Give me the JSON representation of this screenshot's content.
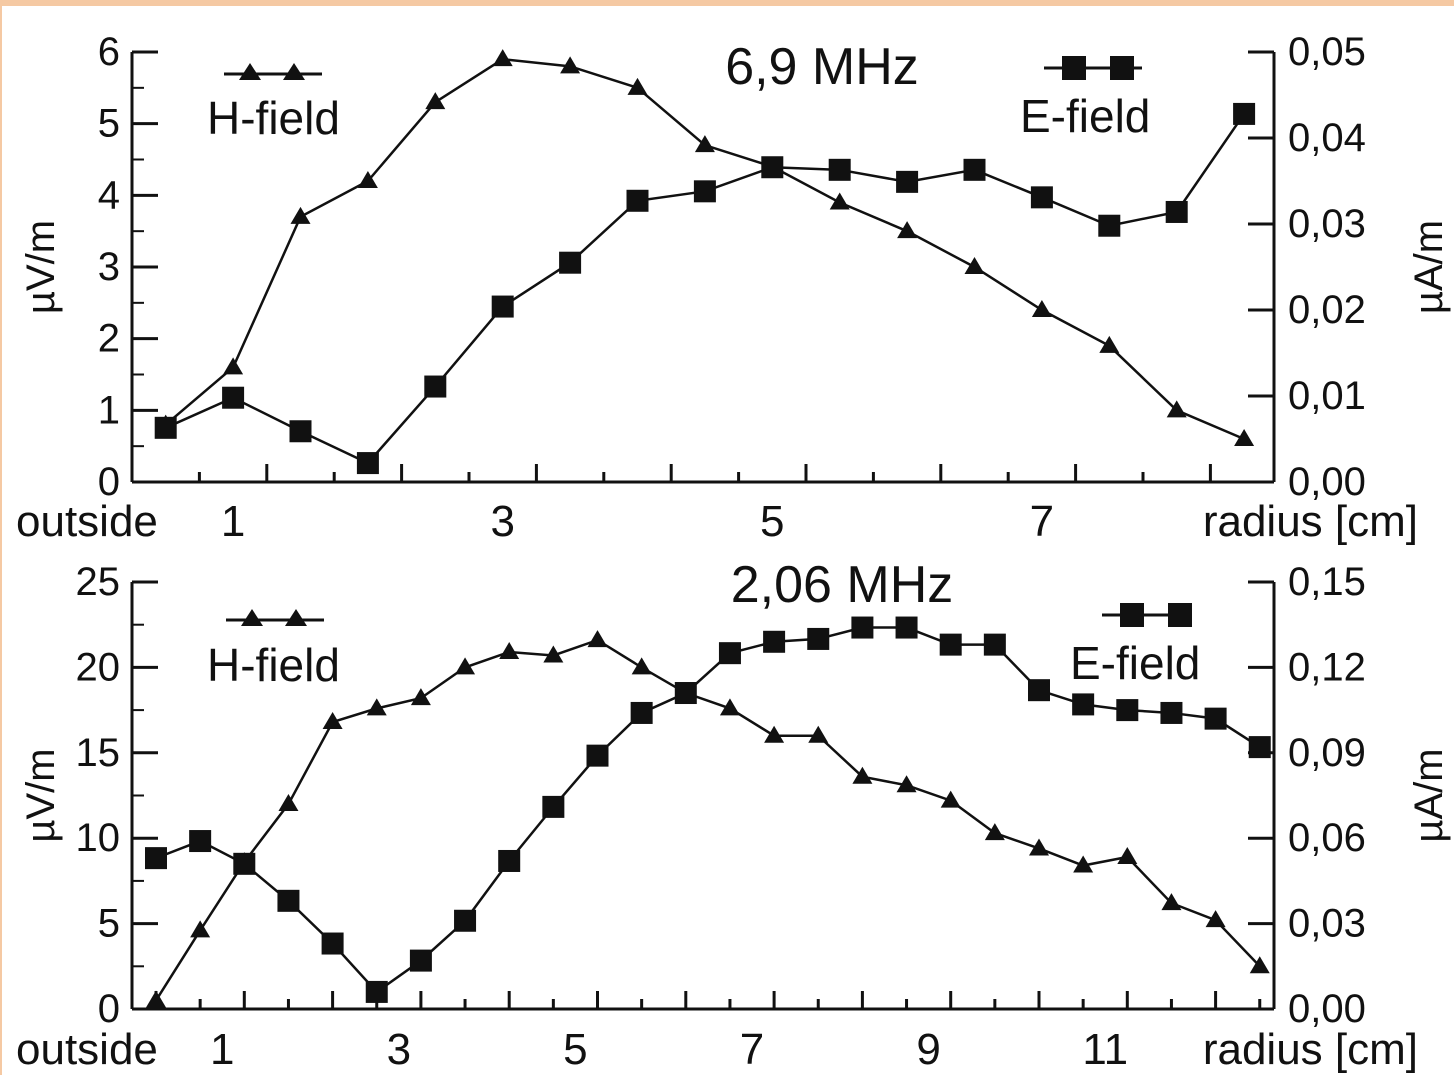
{
  "chart_data": [
    {
      "type": "line",
      "title": "6,9 MHz",
      "xlabel": "radius [cm]",
      "x_first_label": "outside",
      "x_tick_labels": [
        "1",
        "3",
        "5",
        "7"
      ],
      "xlim": [
        0,
        8.6
      ],
      "ylabel": "µV/m",
      "ylim": [
        0,
        6
      ],
      "y_ticks": [
        "0",
        "1",
        "2",
        "3",
        "4",
        "5",
        "6"
      ],
      "y2label": "µA/m",
      "y2lim": [
        0,
        0.05
      ],
      "y2_ticks": [
        "0,00",
        "0,01",
        "0,02",
        "0,03",
        "0,04",
        "0,05"
      ],
      "legend": [
        "H-field",
        "E-field"
      ],
      "series": [
        {
          "name": "H-field",
          "axis": "left",
          "marker": "triangle",
          "x": [
            0.25,
            0.75,
            1.25,
            1.75,
            2.25,
            2.75,
            3.25,
            3.75,
            4.25,
            4.75,
            5.25,
            5.75,
            6.25,
            6.75,
            7.25,
            7.75,
            8.25
          ],
          "values": [
            0.8,
            1.6,
            3.7,
            4.2,
            5.3,
            5.9,
            5.8,
            5.5,
            4.7,
            4.4,
            3.9,
            3.5,
            3.0,
            2.4,
            1.9,
            1.0,
            0.6
          ]
        },
        {
          "name": "E-field",
          "axis": "right",
          "marker": "square",
          "x": [
            0.25,
            0.75,
            1.25,
            1.75,
            2.25,
            2.75,
            3.25,
            3.75,
            4.25,
            4.75,
            5.25,
            5.75,
            6.25,
            6.75,
            7.25,
            7.75,
            8.25
          ],
          "values": [
            0.0063,
            0.0098,
            0.0059,
            0.0022,
            0.0111,
            0.0204,
            0.0255,
            0.0327,
            0.0338,
            0.0366,
            0.0363,
            0.0349,
            0.0363,
            0.0331,
            0.0298,
            0.0314,
            0.0428
          ]
        }
      ]
    },
    {
      "type": "line",
      "title": "2,06 MHz",
      "xlabel": "radius [cm]",
      "x_first_label": "outside",
      "x_tick_labels": [
        "1",
        "3",
        "5",
        "7",
        "9",
        "11"
      ],
      "xlim": [
        -0.5,
        13
      ],
      "ylabel": "µV/m",
      "ylim": [
        0,
        25
      ],
      "y_ticks": [
        "0",
        "5",
        "10",
        "15",
        "20",
        "25"
      ],
      "y2label": "µA/m",
      "y2lim": [
        0,
        0.15
      ],
      "y2_ticks": [
        "0,00",
        "0,03",
        "0,06",
        "0,09",
        "0,12",
        "0,15"
      ],
      "legend": [
        "H-field",
        "E-field"
      ],
      "series": [
        {
          "name": "H-field",
          "axis": "left",
          "marker": "triangle",
          "x": [
            0.0,
            0.5,
            1.0,
            1.5,
            2.0,
            2.5,
            3.0,
            3.5,
            4.0,
            4.5,
            5.0,
            5.5,
            6.0,
            6.5,
            7.0,
            7.5,
            8.0,
            8.5,
            9.0,
            9.5,
            10.0,
            10.5,
            11.0,
            11.5,
            12.0,
            12.5
          ],
          "values": [
            0.5,
            4.6,
            8.6,
            12.0,
            16.8,
            17.6,
            18.2,
            20.0,
            20.9,
            20.7,
            21.6,
            20.0,
            18.5,
            17.6,
            16.0,
            16.0,
            13.6,
            13.1,
            12.2,
            10.3,
            9.4,
            8.4,
            8.9,
            6.2,
            5.2,
            2.5
          ]
        },
        {
          "name": "E-field",
          "axis": "right",
          "marker": "square",
          "x": [
            0.0,
            0.5,
            1.0,
            1.5,
            2.0,
            2.5,
            3.0,
            3.5,
            4.0,
            4.5,
            5.0,
            5.5,
            6.0,
            6.5,
            7.0,
            7.5,
            8.0,
            8.5,
            9.0,
            9.5,
            10.0,
            10.5,
            11.0,
            11.5,
            12.0,
            12.5
          ],
          "values": [
            0.053,
            0.059,
            0.051,
            0.038,
            0.023,
            0.006,
            0.017,
            0.031,
            0.052,
            0.071,
            0.089,
            0.104,
            0.111,
            0.125,
            0.129,
            0.13,
            0.134,
            0.134,
            0.128,
            0.128,
            0.112,
            0.107,
            0.105,
            0.104,
            0.102,
            0.092
          ]
        }
      ]
    }
  ]
}
